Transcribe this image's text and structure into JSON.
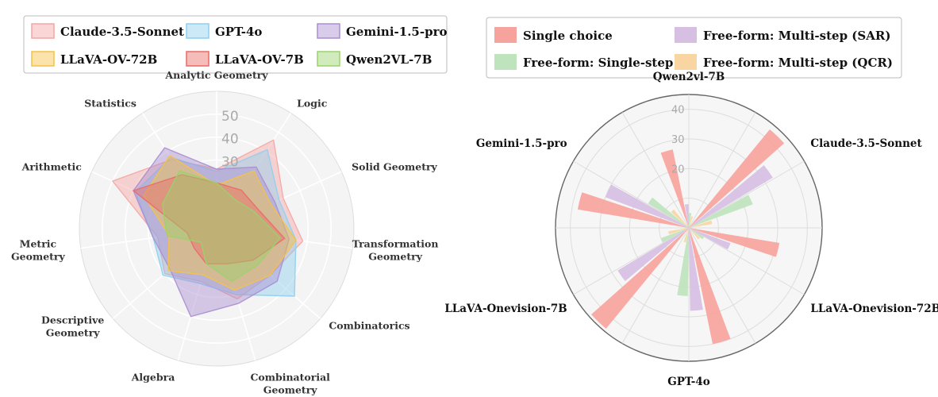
{
  "chart_data": [
    {
      "type": "radar",
      "title": "",
      "categories": [
        "Analytic Geometry",
        "Logic",
        "Solid Geometry",
        "Transformation Geometry",
        "Combinatorics",
        "Combinatorial Geometry",
        "Algebra",
        "Descriptive Geometry",
        "Metric Geometry",
        "Arithmetic",
        "Statistics"
      ],
      "rlim": [
        0,
        60
      ],
      "ticks": [
        30,
        40,
        50
      ],
      "tick_labels": [
        "30",
        "40",
        "50"
      ],
      "legend_placement": "top",
      "grid": true,
      "series": [
        {
          "name": "Claude-3.5-Sonnet",
          "color": "#f4a6a3",
          "values": [
            26,
            46,
            32,
            38,
            31,
            32,
            24,
            30,
            26,
            50,
            36
          ]
        },
        {
          "name": "GPT-4o",
          "color": "#8ecff0",
          "values": [
            25,
            41,
            30,
            35,
            45,
            30,
            25,
            31,
            28,
            39,
            37
          ]
        },
        {
          "name": "Gemini-1.5-pro",
          "color": "#a98fd0",
          "values": [
            26,
            32,
            28,
            32,
            35,
            34,
            40,
            27,
            28,
            40,
            42
          ]
        },
        {
          "name": "LLaVA-OV-72B",
          "color": "#f6c244",
          "values": [
            19,
            30,
            26,
            35,
            31,
            28,
            21,
            28,
            21,
            35,
            38
          ]
        },
        {
          "name": "LLaVA-OV-7B",
          "color": "#ea6a66",
          "values": [
            20,
            20,
            20,
            30,
            21,
            16,
            16,
            13,
            13,
            40,
            28
          ]
        },
        {
          "name": "Qwen2VL-7B",
          "color": "#9ad36a",
          "values": [
            20,
            15,
            18,
            28,
            24,
            24,
            16,
            9,
            22,
            26,
            30
          ]
        }
      ]
    },
    {
      "type": "polar-bar",
      "title": "",
      "categories": [
        "Qwen2vl-7B",
        "Claude-3.5-Sonnet",
        "LLaVA-Onevision-72B",
        "GPT-4o",
        "LLaVA-Onevision-7B",
        "Gemini-1.5-pro"
      ],
      "rlim": [
        0,
        45
      ],
      "ticks": [
        20,
        30,
        40
      ],
      "tick_labels": [
        "20",
        "30",
        "40"
      ],
      "legend_placement": "top",
      "grid": true,
      "series": [
        {
          "name": "Single choice",
          "color": "#f7a39d",
          "values": [
            27,
            43,
            31,
            40,
            44,
            38
          ]
        },
        {
          "name": "Free-form: Multi-step (SAR)",
          "color": "#d7bfe3",
          "values": [
            8,
            33,
            15,
            28,
            28,
            30
          ]
        },
        {
          "name": "Free-form: Single-step",
          "color": "#bfe3bd",
          "values": [
            5,
            23,
            6,
            23,
            10,
            16
          ]
        },
        {
          "name": "Free-form: Multi-step (QCR)",
          "color": "#f9d5a2",
          "values": [
            4,
            8,
            5,
            5,
            7,
            8
          ]
        }
      ]
    }
  ]
}
